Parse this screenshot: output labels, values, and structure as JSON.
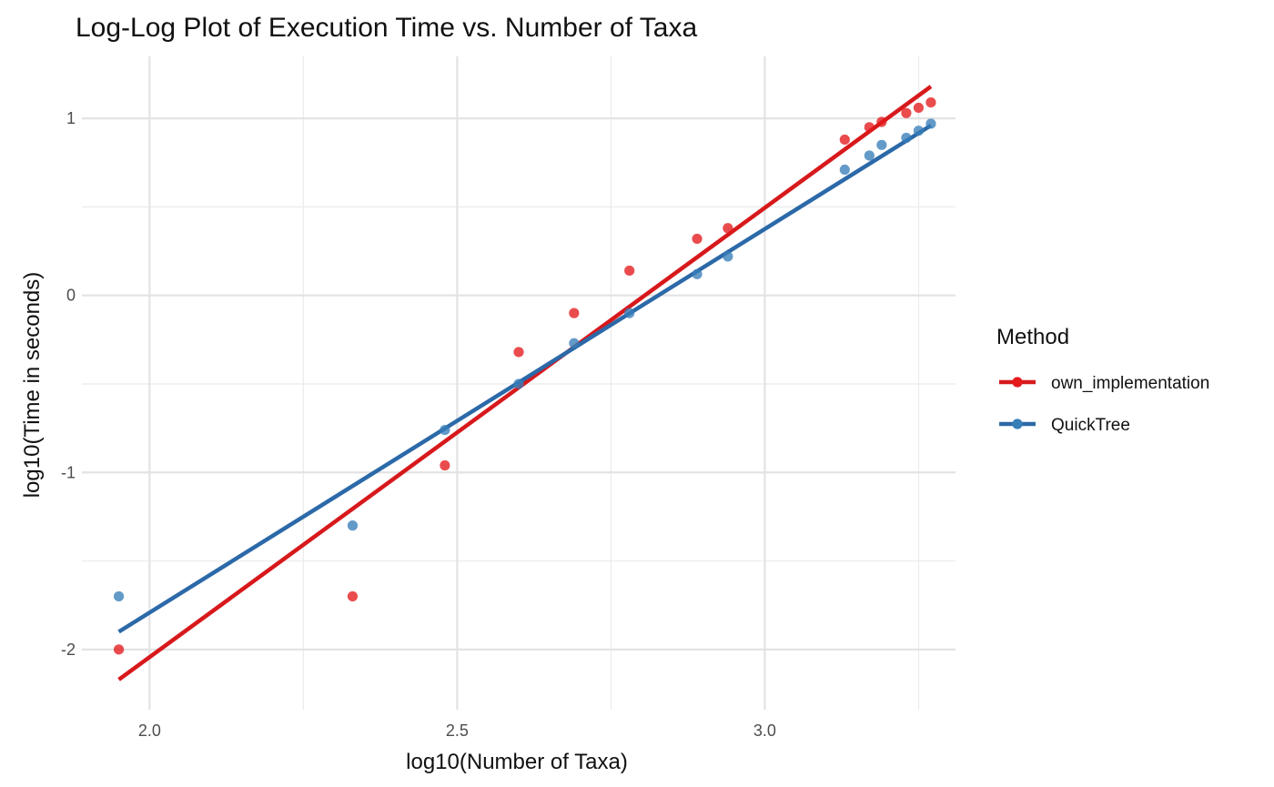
{
  "chart_data": {
    "type": "scatter",
    "title": "Log-Log Plot of Execution Time vs. Number of Taxa",
    "xlabel": "log10(Number of Taxa)",
    "ylabel": "log10(Time in seconds)",
    "xlim": [
      1.89,
      3.31
    ],
    "ylim": [
      -2.34,
      1.35
    ],
    "x_ticks": [
      {
        "value": 2.0,
        "label": "2.0"
      },
      {
        "value": 2.5,
        "label": "2.5"
      },
      {
        "value": 3.0,
        "label": "3.0"
      }
    ],
    "x_minor_ticks": [
      2.25,
      2.75,
      3.25
    ],
    "y_ticks": [
      {
        "value": -2,
        "label": "-2"
      },
      {
        "value": -1,
        "label": "-1"
      },
      {
        "value": 0,
        "label": "0"
      },
      {
        "value": 1,
        "label": "1"
      }
    ],
    "y_minor_ticks": [
      -1.5,
      -0.5,
      0.5
    ],
    "grid": true,
    "legend": {
      "title": "Method",
      "position": "right"
    },
    "series": [
      {
        "name": "own_implementation",
        "color": "#e41a1c",
        "line_color": "#d7191c",
        "points": [
          {
            "x": 1.95,
            "y": -2.0
          },
          {
            "x": 2.33,
            "y": -1.7
          },
          {
            "x": 2.48,
            "y": -0.96
          },
          {
            "x": 2.6,
            "y": -0.32
          },
          {
            "x": 2.69,
            "y": -0.1
          },
          {
            "x": 2.78,
            "y": 0.14
          },
          {
            "x": 2.89,
            "y": 0.32
          },
          {
            "x": 2.94,
            "y": 0.38
          },
          {
            "x": 3.13,
            "y": 0.88
          },
          {
            "x": 3.17,
            "y": 0.95
          },
          {
            "x": 3.19,
            "y": 0.98
          },
          {
            "x": 3.23,
            "y": 1.03
          },
          {
            "x": 3.25,
            "y": 1.06
          },
          {
            "x": 3.27,
            "y": 1.09
          }
        ],
        "fit_line": [
          {
            "x": 1.95,
            "y": -2.17
          },
          {
            "x": 3.27,
            "y": 1.18
          }
        ]
      },
      {
        "name": "QuickTree",
        "color": "#377eb8",
        "line_color": "#2c69a8",
        "points": [
          {
            "x": 1.95,
            "y": -1.7
          },
          {
            "x": 2.33,
            "y": -1.3
          },
          {
            "x": 2.48,
            "y": -0.76
          },
          {
            "x": 2.6,
            "y": -0.5
          },
          {
            "x": 2.69,
            "y": -0.27
          },
          {
            "x": 2.78,
            "y": -0.1
          },
          {
            "x": 2.89,
            "y": 0.12
          },
          {
            "x": 2.94,
            "y": 0.22
          },
          {
            "x": 3.13,
            "y": 0.71
          },
          {
            "x": 3.17,
            "y": 0.79
          },
          {
            "x": 3.19,
            "y": 0.85
          },
          {
            "x": 3.23,
            "y": 0.89
          },
          {
            "x": 3.25,
            "y": 0.93
          },
          {
            "x": 3.27,
            "y": 0.97
          }
        ],
        "fit_line": [
          {
            "x": 1.95,
            "y": -1.9
          },
          {
            "x": 3.27,
            "y": 0.96
          }
        ]
      }
    ]
  }
}
